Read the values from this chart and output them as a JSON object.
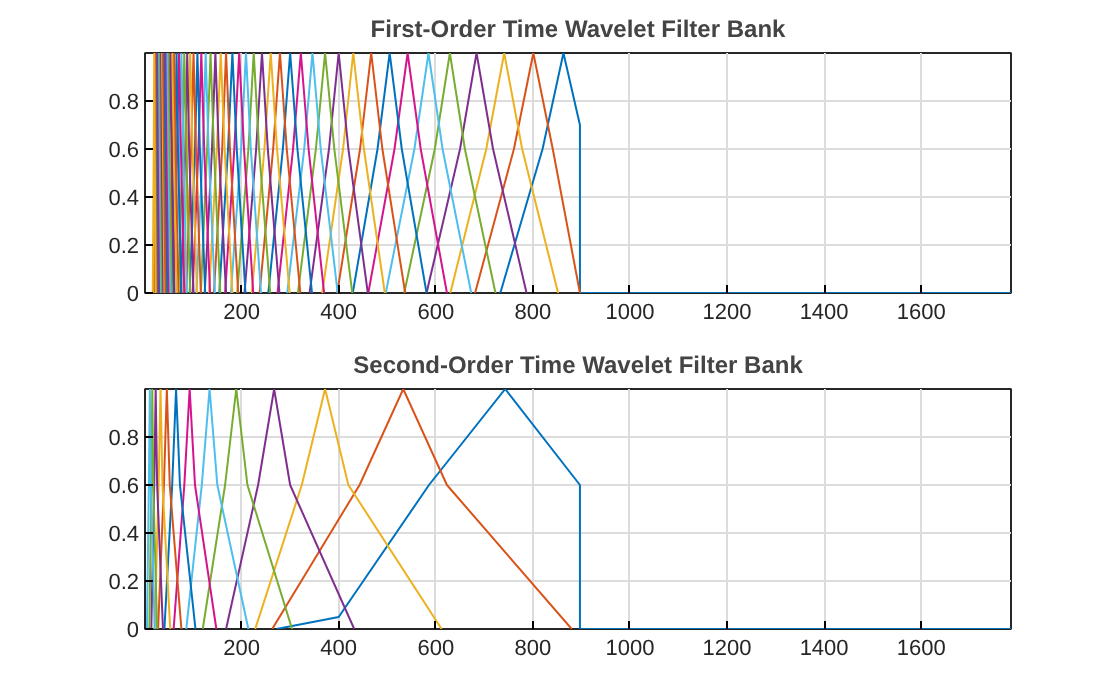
{
  "chart_data": [
    {
      "type": "line",
      "title": "First-Order Time Wavelet Filter Bank",
      "xlim": [
        1,
        1785
      ],
      "ylim": [
        0,
        1
      ],
      "xticks": [
        200,
        400,
        600,
        800,
        1000,
        1200,
        1400,
        1600
      ],
      "yticks": [
        0,
        0.2,
        0.4,
        0.6,
        0.8
      ],
      "grid": true,
      "series": [
        {
          "color": "#0072bd",
          "x": [
            733,
            820,
            863,
            897,
            897,
            1785
          ],
          "values": [
            0,
            0.6,
            1,
            0.7,
            0,
            0
          ]
        },
        {
          "color": "#d95319",
          "x": [
            681,
            761,
            801,
            841,
            897
          ],
          "values": [
            0,
            0.6,
            1,
            0.6,
            0
          ]
        },
        {
          "color": "#edb120",
          "x": [
            630,
            704,
            741,
            778,
            852
          ],
          "values": [
            0,
            0.6,
            1,
            0.6,
            0
          ]
        },
        {
          "color": "#7e2f8e",
          "x": [
            581,
            650,
            684,
            718,
            787
          ],
          "values": [
            0,
            0.6,
            1,
            0.6,
            0
          ]
        },
        {
          "color": "#77ac30",
          "x": [
            535,
            598,
            629,
            660,
            723
          ],
          "values": [
            0,
            0.6,
            1,
            0.6,
            0
          ]
        },
        {
          "color": "#4dbeee",
          "x": [
            497,
            556,
            585,
            614,
            673
          ],
          "values": [
            0,
            0.6,
            1,
            0.6,
            0
          ]
        },
        {
          "color": "#d4148c",
          "x": [
            461,
            515,
            542,
            569,
            623
          ],
          "values": [
            0,
            0.6,
            1,
            0.6,
            0
          ]
        },
        {
          "color": "#0072bd",
          "x": [
            429,
            480,
            505,
            530,
            581
          ],
          "values": [
            0,
            0.6,
            1,
            0.6,
            0
          ]
        },
        {
          "color": "#d95319",
          "x": [
            397,
            444,
            467,
            490,
            537
          ],
          "values": [
            0,
            0.6,
            1,
            0.6,
            0
          ]
        },
        {
          "color": "#edb120",
          "x": [
            366,
            409,
            430,
            452,
            495
          ],
          "values": [
            0,
            0.6,
            1,
            0.6,
            0
          ]
        },
        {
          "color": "#7e2f8e",
          "x": [
            340,
            380,
            400,
            420,
            460
          ],
          "values": [
            0,
            0.6,
            1,
            0.6,
            0
          ]
        },
        {
          "color": "#77ac30",
          "x": [
            316,
            353,
            372,
            391,
            428
          ],
          "values": [
            0,
            0.6,
            1,
            0.6,
            0
          ]
        },
        {
          "color": "#4dbeee",
          "x": [
            294,
            329,
            346,
            363,
            398
          ],
          "values": [
            0,
            0.6,
            1,
            0.6,
            0
          ]
        },
        {
          "color": "#d4148c",
          "x": [
            274,
            306,
            322,
            338,
            370
          ],
          "values": [
            0,
            0.6,
            1,
            0.6,
            0
          ]
        },
        {
          "color": "#0072bd",
          "x": [
            255,
            285,
            300,
            315,
            345
          ],
          "values": [
            0,
            0.6,
            1,
            0.6,
            0
          ]
        },
        {
          "color": "#d95319",
          "x": [
            237,
            265,
            279,
            293,
            321
          ],
          "values": [
            0,
            0.6,
            1,
            0.6,
            0
          ]
        },
        {
          "color": "#edb120",
          "x": [
            221,
            247,
            260,
            273,
            299
          ],
          "values": [
            0,
            0.6,
            1,
            0.6,
            0
          ]
        },
        {
          "color": "#7e2f8e",
          "x": [
            206,
            230,
            242,
            254,
            278
          ],
          "values": [
            0,
            0.6,
            1,
            0.6,
            0
          ]
        },
        {
          "color": "#77ac30",
          "x": [
            191,
            214,
            225,
            236,
            259
          ],
          "values": [
            0,
            0.6,
            1,
            0.6,
            0
          ]
        },
        {
          "color": "#4dbeee",
          "x": [
            178,
            199,
            209,
            219,
            240
          ],
          "values": [
            0,
            0.6,
            1,
            0.6,
            0
          ]
        },
        {
          "color": "#d4148c",
          "x": [
            166,
            185,
            195,
            205,
            224
          ],
          "values": [
            0,
            0.6,
            1,
            0.6,
            0
          ]
        },
        {
          "color": "#0072bd",
          "x": [
            154,
            172,
            181,
            190,
            208
          ],
          "values": [
            0,
            0.6,
            1,
            0.6,
            0
          ]
        },
        {
          "color": "#d95319",
          "x": [
            143,
            160,
            168,
            176,
            193
          ],
          "values": [
            0,
            0.6,
            1,
            0.6,
            0
          ]
        },
        {
          "color": "#edb120",
          "x": [
            133,
            149,
            157,
            165,
            181
          ],
          "values": [
            0,
            0.6,
            1,
            0.6,
            0
          ]
        },
        {
          "color": "#7e2f8e",
          "x": [
            124,
            139,
            146,
            153,
            168
          ],
          "values": [
            0,
            0.6,
            1,
            0.6,
            0
          ]
        },
        {
          "color": "#77ac30",
          "x": [
            116,
            129,
            136,
            143,
            156
          ],
          "values": [
            0,
            0.6,
            1,
            0.6,
            0
          ]
        },
        {
          "color": "#4dbeee",
          "x": [
            107,
            120,
            126,
            132,
            145
          ],
          "values": [
            0,
            0.6,
            1,
            0.6,
            0
          ]
        },
        {
          "color": "#d4148c",
          "x": [
            99,
            111,
            117,
            123,
            135
          ],
          "values": [
            0,
            0.6,
            1,
            0.6,
            0
          ]
        },
        {
          "color": "#0072bd",
          "x": [
            93,
            104,
            109,
            114,
            125
          ],
          "values": [
            0,
            0.6,
            1,
            0.6,
            0
          ]
        },
        {
          "color": "#d95319",
          "x": [
            86,
            96,
            101,
            106,
            116
          ],
          "values": [
            0,
            0.6,
            1,
            0.6,
            0
          ]
        },
        {
          "color": "#edb120",
          "x": [
            80,
            89,
            94,
            99,
            108
          ],
          "values": [
            0,
            0.6,
            1,
            0.6,
            0
          ]
        },
        {
          "color": "#7e2f8e",
          "x": [
            75,
            84,
            88,
            92,
            101
          ],
          "values": [
            0,
            0.6,
            1,
            0.6,
            0
          ]
        },
        {
          "color": "#77ac30",
          "x": [
            70,
            78,
            82,
            86,
            94
          ],
          "values": [
            0,
            0.6,
            1,
            0.6,
            0
          ]
        },
        {
          "color": "#4dbeee",
          "x": [
            65,
            72,
            76,
            80,
            87
          ],
          "values": [
            0,
            0.6,
            1,
            0.6,
            0
          ]
        },
        {
          "color": "#d4148c",
          "x": [
            60,
            67,
            71,
            75,
            82
          ],
          "values": [
            0,
            0.6,
            1,
            0.6,
            0
          ]
        },
        {
          "color": "#0072bd",
          "x": [
            56,
            63,
            66,
            69,
            76
          ],
          "values": [
            0,
            0.6,
            1,
            0.6,
            0
          ]
        },
        {
          "color": "#d95319",
          "x": [
            52,
            58,
            61,
            64,
            70
          ],
          "values": [
            0,
            0.6,
            1,
            0.6,
            0
          ]
        },
        {
          "color": "#edb120",
          "x": [
            48,
            54,
            57,
            60,
            66
          ],
          "values": [
            0,
            0.6,
            1,
            0.6,
            0
          ]
        },
        {
          "color": "#7e2f8e",
          "x": [
            45,
            50,
            53,
            56,
            61
          ],
          "values": [
            0,
            0.6,
            1,
            0.6,
            0
          ]
        },
        {
          "color": "#77ac30",
          "x": [
            42,
            47,
            49,
            51,
            56
          ],
          "values": [
            0,
            0.6,
            1,
            0.6,
            0
          ]
        },
        {
          "color": "#4dbeee",
          "x": [
            39,
            44,
            46,
            48,
            53
          ],
          "values": [
            0,
            0.6,
            1,
            0.6,
            0
          ]
        },
        {
          "color": "#d4148c",
          "x": [
            37,
            41,
            43,
            45,
            49
          ],
          "values": [
            0,
            0.6,
            1,
            0.6,
            0
          ]
        },
        {
          "color": "#0072bd",
          "x": [
            34,
            38,
            40,
            42,
            46
          ],
          "values": [
            0,
            0.6,
            1,
            0.6,
            0
          ]
        },
        {
          "color": "#d95319",
          "x": [
            31,
            35,
            37,
            39,
            43
          ],
          "values": [
            0,
            0.6,
            1,
            0.6,
            0
          ]
        },
        {
          "color": "#edb120",
          "x": [
            29,
            32,
            34,
            36,
            39
          ],
          "values": [
            0,
            0.6,
            1,
            0.6,
            0
          ]
        },
        {
          "color": "#7e2f8e",
          "x": [
            27,
            30,
            32,
            34,
            37
          ],
          "values": [
            0,
            0.6,
            1,
            0.6,
            0
          ]
        },
        {
          "color": "#77ac30",
          "x": [
            26,
            28.5,
            30,
            31.5,
            34.5
          ],
          "values": [
            0,
            0.6,
            1,
            0.6,
            0
          ]
        },
        {
          "color": "#4dbeee",
          "x": [
            24,
            26.6,
            28,
            29.4,
            32
          ],
          "values": [
            0,
            0.6,
            1,
            0.6,
            0
          ]
        },
        {
          "color": "#d4148c",
          "x": [
            22,
            24.7,
            26,
            27.3,
            30
          ],
          "values": [
            0,
            0.6,
            1,
            0.6,
            0
          ]
        },
        {
          "color": "#0072bd",
          "x": [
            20,
            23,
            24,
            25,
            28
          ],
          "values": [
            0,
            0.6,
            1,
            0.6,
            0
          ]
        },
        {
          "color": "#d95319",
          "x": [
            19,
            21,
            22,
            23,
            25
          ],
          "values": [
            0,
            0.6,
            1,
            0.6,
            0
          ]
        },
        {
          "color": "#edb120",
          "x": [
            17,
            19,
            20,
            21,
            23
          ],
          "values": [
            0,
            0.6,
            1,
            0.6,
            0
          ]
        }
      ]
    },
    {
      "type": "line",
      "title": "Second-Order Time Wavelet Filter Bank",
      "xlim": [
        1,
        1785
      ],
      "ylim": [
        0,
        1
      ],
      "xticks": [
        200,
        400,
        600,
        800,
        1000,
        1200,
        1400,
        1600
      ],
      "yticks": [
        0,
        0.2,
        0.4,
        0.6,
        0.8
      ],
      "grid": true,
      "series": [
        {
          "color": "#0072bd",
          "x": [
            272,
            400,
            586,
            743,
            897,
            897,
            1785
          ],
          "values": [
            0,
            0.05,
            0.6,
            1,
            0.6,
            0,
            0
          ]
        },
        {
          "color": "#d95319",
          "x": [
            263,
            443,
            533,
            623,
            880
          ],
          "values": [
            0,
            0.6,
            1,
            0.6,
            0
          ]
        },
        {
          "color": "#edb120",
          "x": [
            228,
            324,
            372,
            420,
            612
          ],
          "values": [
            0,
            0.6,
            1,
            0.6,
            0
          ]
        },
        {
          "color": "#7e2f8e",
          "x": [
            168,
            234,
            267,
            300,
            432
          ],
          "values": [
            0,
            0.6,
            1,
            0.6,
            0
          ]
        },
        {
          "color": "#77ac30",
          "x": [
            120,
            166,
            189,
            212,
            304
          ],
          "values": [
            0,
            0.6,
            1,
            0.6,
            0
          ]
        },
        {
          "color": "#4dbeee",
          "x": [
            86,
            118,
            134,
            150,
            214
          ],
          "values": [
            0,
            0.6,
            1,
            0.6,
            0
          ]
        },
        {
          "color": "#d4148c",
          "x": [
            60,
            82,
            93,
            104,
            148
          ],
          "values": [
            0,
            0.6,
            1,
            0.6,
            0
          ]
        },
        {
          "color": "#0072bd",
          "x": [
            41,
            57,
            65,
            73,
            105
          ],
          "values": [
            0,
            0.6,
            1,
            0.6,
            0
          ]
        },
        {
          "color": "#d95319",
          "x": [
            28,
            40,
            46,
            52,
            76
          ],
          "values": [
            0,
            0.6,
            1,
            0.6,
            0
          ]
        },
        {
          "color": "#edb120",
          "x": [
            21,
            29,
            33,
            37,
            53
          ],
          "values": [
            0,
            0.6,
            1,
            0.6,
            0
          ]
        },
        {
          "color": "#7e2f8e",
          "x": [
            14,
            20,
            23,
            26,
            38
          ],
          "values": [
            0,
            0.6,
            1,
            0.6,
            0
          ]
        },
        {
          "color": "#77ac30",
          "x": [
            10,
            14,
            16,
            18,
            26
          ],
          "values": [
            0,
            0.6,
            1,
            0.6,
            0
          ]
        },
        {
          "color": "#4dbeee",
          "x": [
            5,
            9,
            11,
            13,
            21
          ],
          "values": [
            0,
            0.6,
            1,
            0.6,
            0
          ]
        }
      ]
    }
  ]
}
